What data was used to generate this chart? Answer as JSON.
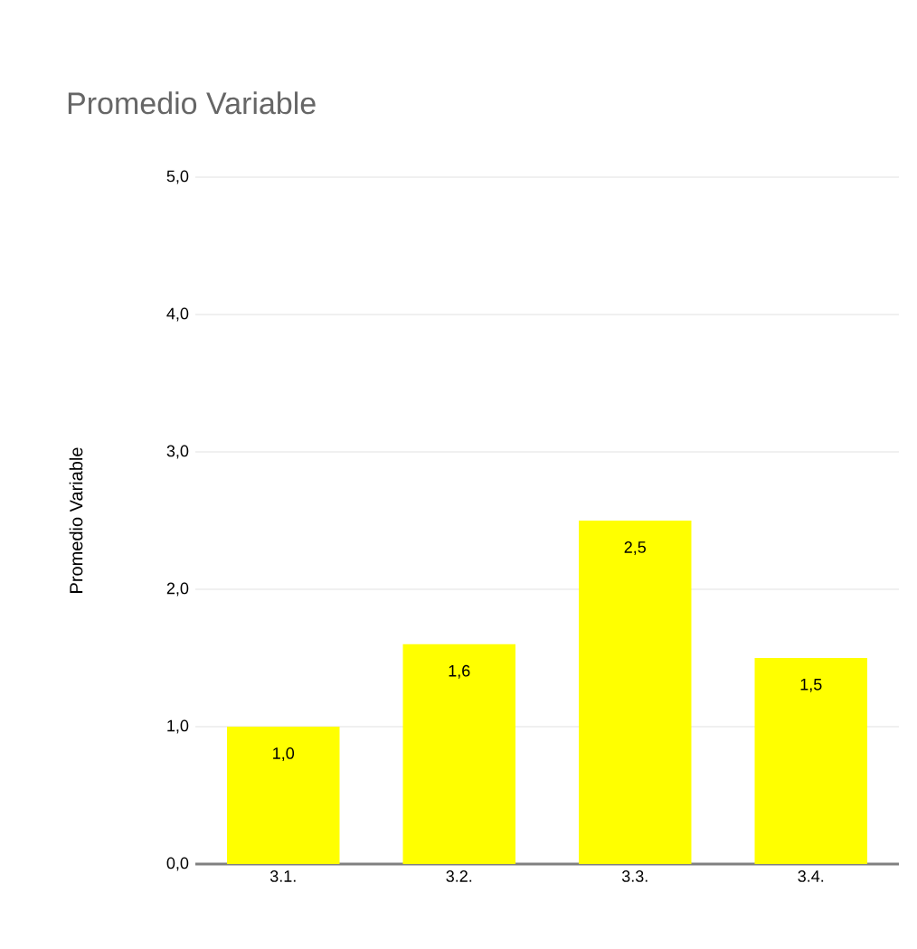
{
  "chart_data": {
    "type": "bar",
    "title": "Promedio Variable",
    "ylabel": "Promedio Variable",
    "categories": [
      "3.1.",
      "3.2.",
      "3.3.",
      "3.4."
    ],
    "values": [
      1.0,
      1.6,
      2.5,
      1.5
    ],
    "value_labels": [
      "1,0",
      "1,6",
      "2,5",
      "1,5"
    ],
    "color": "#ffff00",
    "ylim": [
      0,
      5
    ],
    "yticks": [
      {
        "value": 0,
        "label": "0,0"
      },
      {
        "value": 1,
        "label": "1,0"
      },
      {
        "value": 2,
        "label": "2,0"
      },
      {
        "value": 3,
        "label": "3,0"
      },
      {
        "value": 4,
        "label": "4,0"
      },
      {
        "value": 5,
        "label": "5,0"
      }
    ],
    "grid": "y"
  }
}
